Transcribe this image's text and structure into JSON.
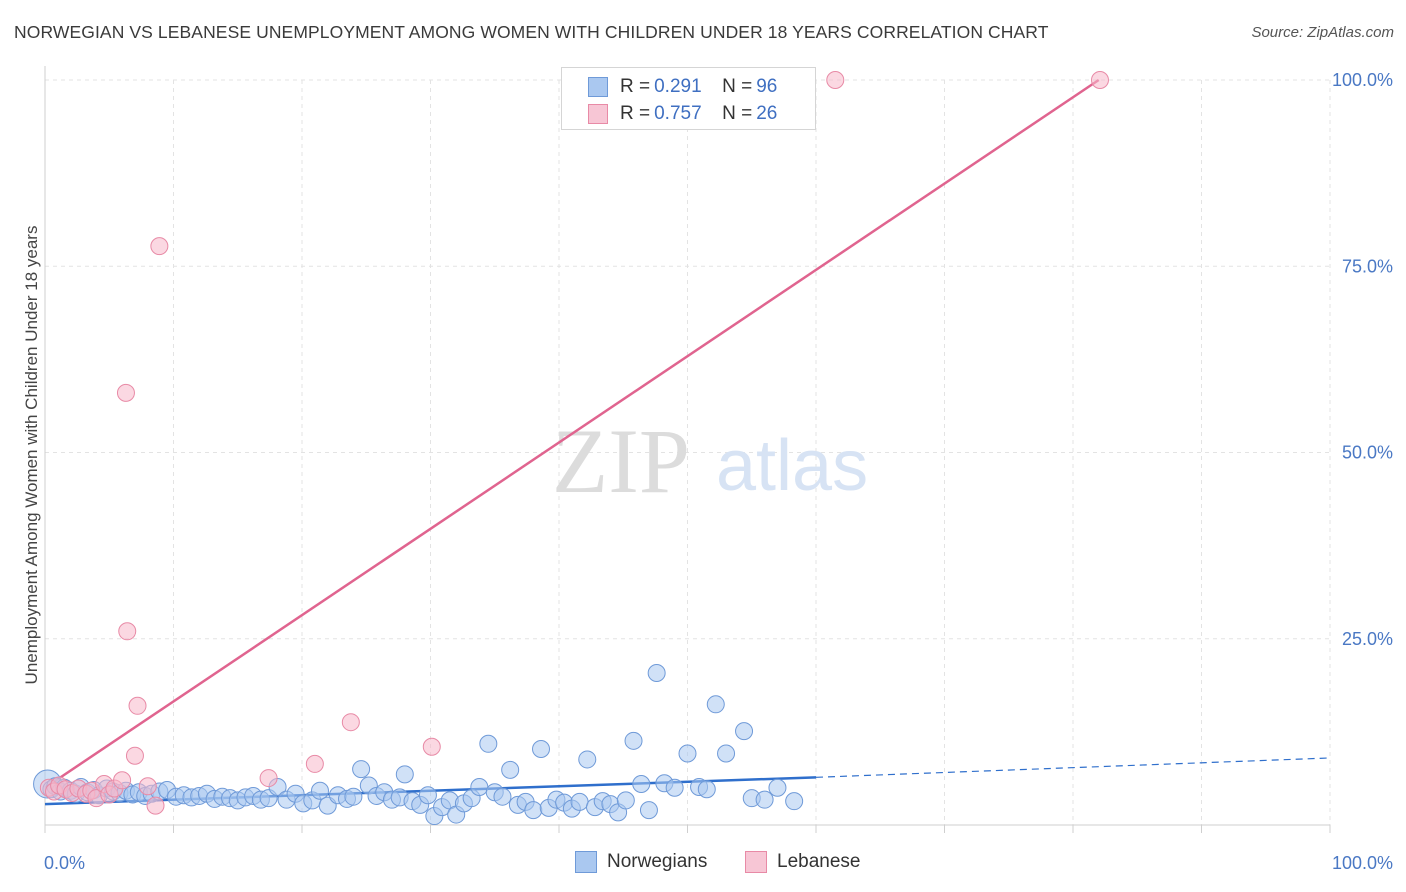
{
  "title": "NORWEGIAN VS LEBANESE UNEMPLOYMENT AMONG WOMEN WITH CHILDREN UNDER 18 YEARS CORRELATION CHART",
  "source": "Source: ZipAtlas.com",
  "watermark": {
    "zip": "ZIP",
    "atlas": "atlas"
  },
  "legend": {
    "rows": [
      {
        "r_label": "R = ",
        "r_value": "0.291",
        "n_label": "N = ",
        "n_value": "96"
      },
      {
        "r_label": "R = ",
        "r_value": "0.757",
        "n_label": "N = ",
        "n_value": "26"
      }
    ]
  },
  "bottom_legend": {
    "norwegians": "Norwegians",
    "lebanese": "Lebanese"
  },
  "colors": {
    "norwegians_fill": "#aac8f0",
    "norwegians_stroke": "#6f9ad8",
    "norwegians_line": "#2f6fcc",
    "lebanese_fill": "#f7b8cb",
    "lebanese_stroke": "#e88aa6",
    "lebanese_line": "#e0648f",
    "tick_text": "#4a78c4",
    "grid": "#e3e3e3"
  },
  "chart_data": {
    "type": "scatter",
    "ylabel": "Unemployment Among Women with Children Under 18 years",
    "xlabel": "",
    "xlim": [
      0,
      100
    ],
    "ylim": [
      0,
      100
    ],
    "x_ticks": [
      "0.0%",
      "100.0%"
    ],
    "y_ticks": [
      {
        "value": 25,
        "label": "25.0%"
      },
      {
        "value": 50,
        "label": "50.0%"
      },
      {
        "value": 75,
        "label": "75.0%"
      },
      {
        "value": 100,
        "label": "100.0%"
      }
    ],
    "grid": true,
    "legend_position": "top-center",
    "series": [
      {
        "name": "Norwegians",
        "points": [
          [
            0.2,
            5.5
          ],
          [
            0.5,
            4.8
          ],
          [
            0.8,
            5.2
          ],
          [
            1.2,
            4.5
          ],
          [
            1.5,
            5.0
          ],
          [
            2.0,
            4.6
          ],
          [
            2.4,
            4.2
          ],
          [
            2.8,
            5.1
          ],
          [
            3.3,
            4.4
          ],
          [
            3.8,
            4.7
          ],
          [
            4.2,
            4.0
          ],
          [
            4.8,
            4.9
          ],
          [
            5.3,
            4.5
          ],
          [
            5.8,
            4.3
          ],
          [
            6.3,
            4.6
          ],
          [
            6.8,
            4.1
          ],
          [
            7.3,
            4.4
          ],
          [
            7.8,
            3.9
          ],
          [
            8.3,
            4.2
          ],
          [
            8.9,
            4.5
          ],
          [
            9.5,
            4.7
          ],
          [
            10.2,
            3.8
          ],
          [
            10.8,
            4.0
          ],
          [
            11.4,
            3.7
          ],
          [
            12.0,
            3.9
          ],
          [
            12.6,
            4.2
          ],
          [
            13.2,
            3.5
          ],
          [
            13.8,
            3.8
          ],
          [
            14.4,
            3.6
          ],
          [
            15.0,
            3.3
          ],
          [
            15.6,
            3.7
          ],
          [
            16.2,
            3.9
          ],
          [
            16.8,
            3.4
          ],
          [
            17.4,
            3.6
          ],
          [
            18.1,
            5.1
          ],
          [
            18.8,
            3.4
          ],
          [
            19.5,
            4.2
          ],
          [
            20.1,
            2.9
          ],
          [
            20.8,
            3.3
          ],
          [
            21.4,
            4.6
          ],
          [
            22.0,
            2.6
          ],
          [
            22.8,
            4.0
          ],
          [
            23.5,
            3.5
          ],
          [
            24.0,
            3.8
          ],
          [
            24.6,
            7.5
          ],
          [
            25.2,
            5.3
          ],
          [
            25.8,
            3.9
          ],
          [
            26.4,
            4.4
          ],
          [
            27.0,
            3.4
          ],
          [
            27.6,
            3.7
          ],
          [
            28.0,
            6.8
          ],
          [
            28.6,
            3.2
          ],
          [
            29.2,
            2.7
          ],
          [
            29.8,
            4.0
          ],
          [
            30.3,
            1.2
          ],
          [
            30.9,
            2.4
          ],
          [
            31.5,
            3.3
          ],
          [
            32.0,
            1.4
          ],
          [
            32.6,
            2.9
          ],
          [
            33.2,
            3.6
          ],
          [
            33.8,
            5.1
          ],
          [
            34.5,
            10.9
          ],
          [
            35.0,
            4.4
          ],
          [
            35.6,
            3.8
          ],
          [
            36.2,
            7.4
          ],
          [
            36.8,
            2.7
          ],
          [
            37.4,
            3.1
          ],
          [
            38.0,
            2.0
          ],
          [
            38.6,
            10.2
          ],
          [
            39.2,
            2.3
          ],
          [
            39.8,
            3.4
          ],
          [
            40.4,
            3.0
          ],
          [
            41.0,
            2.2
          ],
          [
            41.6,
            3.1
          ],
          [
            42.2,
            8.8
          ],
          [
            42.8,
            2.4
          ],
          [
            43.4,
            3.2
          ],
          [
            44.0,
            2.8
          ],
          [
            44.6,
            1.7
          ],
          [
            45.2,
            3.3
          ],
          [
            45.8,
            11.3
          ],
          [
            46.4,
            5.5
          ],
          [
            47.0,
            2.0
          ],
          [
            47.6,
            20.4
          ],
          [
            48.2,
            5.6
          ],
          [
            49.0,
            5.0
          ],
          [
            50.0,
            9.6
          ],
          [
            50.9,
            5.1
          ],
          [
            51.5,
            4.8
          ],
          [
            52.2,
            16.2
          ],
          [
            53.0,
            9.6
          ],
          [
            54.4,
            12.6
          ],
          [
            55.0,
            3.6
          ],
          [
            56.0,
            3.4
          ],
          [
            57.0,
            5.0
          ],
          [
            58.3,
            3.2
          ]
        ],
        "trend": {
          "x0": 0,
          "y0": 2.8,
          "x1": 60,
          "y1": 6.4,
          "dashed_to_x": 100,
          "dashed_to_y": 9.0
        }
      },
      {
        "name": "Lebanese",
        "points": [
          [
            0.3,
            5.0
          ],
          [
            0.7,
            4.5
          ],
          [
            1.1,
            5.3
          ],
          [
            1.6,
            4.8
          ],
          [
            2.1,
            4.3
          ],
          [
            2.6,
            4.9
          ],
          [
            3.2,
            4.2
          ],
          [
            3.6,
            4.6
          ],
          [
            4.0,
            3.6
          ],
          [
            4.6,
            5.5
          ],
          [
            5.0,
            4.1
          ],
          [
            5.4,
            4.9
          ],
          [
            6.0,
            6.0
          ],
          [
            6.3,
            58.0
          ],
          [
            6.4,
            26.0
          ],
          [
            7.2,
            16.0
          ],
          [
            7.0,
            9.3
          ],
          [
            8.0,
            5.2
          ],
          [
            8.6,
            2.6
          ],
          [
            8.9,
            77.7
          ],
          [
            17.4,
            6.3
          ],
          [
            21.0,
            8.2
          ],
          [
            23.8,
            13.8
          ],
          [
            30.1,
            10.5
          ],
          [
            61.5,
            100.0
          ],
          [
            82.1,
            100.0
          ]
        ],
        "trend": {
          "x0": 0,
          "y0": 5.0,
          "x1": 82.0,
          "y1": 100.0
        }
      }
    ]
  }
}
